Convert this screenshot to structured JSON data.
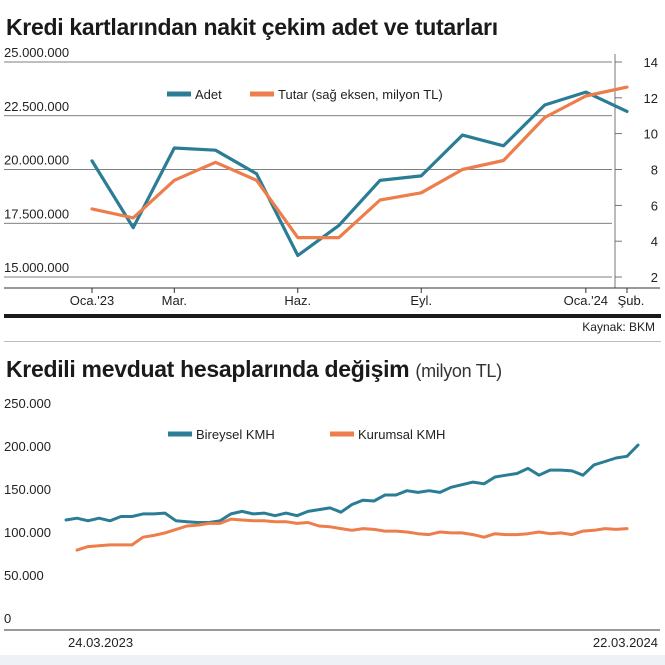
{
  "chart_data": [
    {
      "type": "line",
      "title": "Kredi kartlarından nakit çekim adet ve tutarları",
      "source": "Kaynak: BKM",
      "x_tick_labels": [
        "Oca.'23",
        "Mar.",
        "Haz.",
        "Eyl.",
        "Oca.'24",
        "Şub."
      ],
      "x_tick_index": [
        0,
        2,
        5,
        8,
        12,
        13
      ],
      "y_left": {
        "ticks": [
          "25.000.000",
          "22.500.000",
          "20.000.000",
          "17.500.000",
          "15.000.000"
        ],
        "range": [
          15000000,
          25000000
        ]
      },
      "y_right": {
        "ticks": [
          "14",
          "12",
          "10",
          "8",
          "6",
          "4",
          "2"
        ],
        "range": [
          2,
          14
        ]
      },
      "grid": true,
      "legend": "top-center",
      "series": [
        {
          "name": "Adet",
          "axis": "left",
          "color": "#2a7d95",
          "values": [
            20400000,
            17300000,
            21000000,
            20900000,
            19800000,
            16000000,
            17400000,
            19500000,
            19700000,
            21600000,
            21100000,
            23000000,
            23600000,
            22700000
          ]
        },
        {
          "name": "Tutar (sağ eksen, milyon TL)",
          "axis": "right",
          "color": "#ed7d4a",
          "values": [
            5.8,
            5.3,
            7.4,
            8.4,
            7.4,
            4.2,
            4.2,
            6.3,
            6.7,
            8.0,
            8.5,
            10.9,
            12.1,
            12.6
          ]
        }
      ]
    },
    {
      "type": "line",
      "title": "Kredili mevduat hesaplarında değişim",
      "unit": "(milyon TL)",
      "x_start_label": "24.03.2023",
      "x_end_label": "22.03.2024",
      "y_ticks": [
        "250.000",
        "200.000",
        "150.000",
        "100.000",
        "50.000",
        "0"
      ],
      "ylim": [
        0,
        250000
      ],
      "legend": "top-center",
      "series": [
        {
          "name": "Bireysel KMH",
          "color": "#2a7d95",
          "values": [
            114000,
            116000,
            113000,
            116000,
            113000,
            118000,
            118000,
            121000,
            121000,
            122000,
            113000,
            112000,
            111000,
            111000,
            113000,
            121000,
            124000,
            121000,
            122000,
            119000,
            122000,
            119000,
            124000,
            126000,
            128000,
            123000,
            132000,
            137000,
            136000,
            143000,
            143000,
            148000,
            146000,
            148000,
            146000,
            152000,
            155000,
            158000,
            156000,
            164000,
            166000,
            168000,
            174000,
            166000,
            172000,
            172000,
            171000,
            166000,
            178000,
            182000,
            186000,
            188000,
            201000
          ]
        },
        {
          "name": "Kurumsal KMH",
          "color": "#ed7d4a",
          "values": [
            null,
            79000,
            83000,
            84000,
            85000,
            85000,
            85000,
            94000,
            96000,
            99000,
            103000,
            107000,
            108000,
            110000,
            110000,
            115000,
            114000,
            113000,
            113000,
            112000,
            112000,
            110000,
            111000,
            107000,
            106000,
            104000,
            102000,
            104000,
            103000,
            101000,
            101000,
            100000,
            98000,
            97000,
            100000,
            99000,
            99000,
            97000,
            94000,
            98000,
            97000,
            97000,
            98000,
            100000,
            98000,
            99000,
            97000,
            101000,
            102000,
            104000,
            103000,
            104000,
            null
          ]
        }
      ]
    }
  ]
}
